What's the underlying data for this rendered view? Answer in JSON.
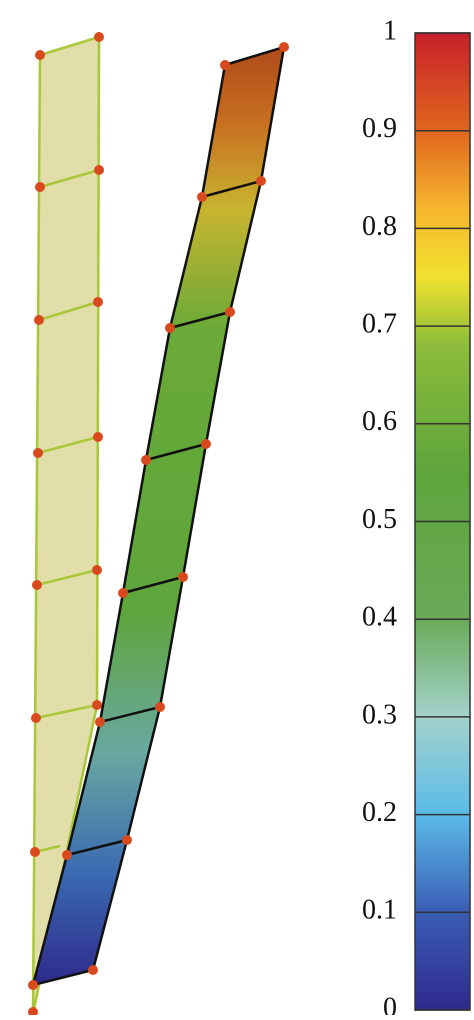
{
  "chart_data": {
    "type": "colorbar",
    "ylim": [
      0,
      1
    ],
    "yticks": [
      0,
      0.1,
      0.2,
      0.3,
      0.4,
      0.5,
      0.6,
      0.7,
      0.8,
      0.9,
      1
    ]
  }
}
